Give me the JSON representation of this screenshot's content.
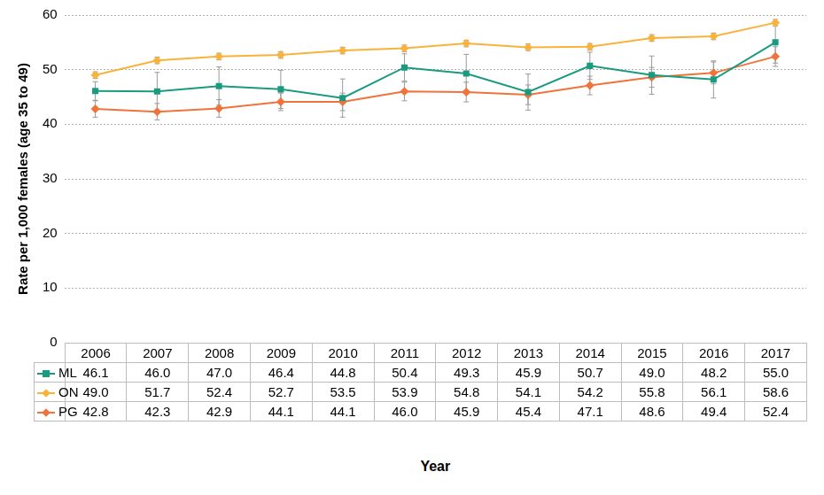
{
  "chart_data": {
    "type": "line",
    "y_label": "Rate per 1,000 females (age 35 to 49)",
    "x_label": "Year",
    "categories": [
      "2006",
      "2007",
      "2008",
      "2009",
      "2010",
      "2011",
      "2012",
      "2013",
      "2014",
      "2015",
      "2016",
      "2017"
    ],
    "series": [
      {
        "name": "ML",
        "color": "#1a9a7f",
        "marker": "square",
        "values": [
          46.1,
          46.0,
          47.0,
          46.4,
          44.8,
          50.4,
          49.3,
          45.9,
          50.7,
          49.0,
          48.2,
          55.0
        ],
        "value_labels": [
          "46.1",
          "46.0",
          "47.0",
          "46.4",
          "44.8",
          "50.4",
          "49.3",
          "45.9",
          "50.7",
          "49.0",
          "48.2",
          "55.0"
        ],
        "error": [
          1.7,
          3.5,
          3.5,
          3.5,
          3.5,
          2.5,
          3.5,
          3.3,
          2.5,
          3.5,
          3.4,
          3.8
        ]
      },
      {
        "name": "ON",
        "color": "#f9b33a",
        "marker": "diamond",
        "values": [
          49.0,
          51.7,
          52.4,
          52.7,
          53.5,
          53.9,
          54.8,
          54.1,
          54.2,
          55.8,
          56.1,
          58.6
        ],
        "value_labels": [
          "49.0",
          "51.7",
          "52.4",
          "52.7",
          "53.5",
          "53.9",
          "54.8",
          "54.1",
          "54.2",
          "55.8",
          "56.1",
          "58.6"
        ],
        "error": [
          0.6,
          0.6,
          0.6,
          0.6,
          0.6,
          0.6,
          0.6,
          0.6,
          0.6,
          0.6,
          0.6,
          0.6
        ]
      },
      {
        "name": "PG",
        "color": "#f0743a",
        "marker": "diamond",
        "values": [
          42.8,
          42.3,
          42.9,
          44.1,
          44.1,
          46.0,
          45.9,
          45.4,
          47.1,
          48.6,
          49.4,
          52.4
        ],
        "value_labels": [
          "42.8",
          "42.3",
          "42.9",
          "44.1",
          "44.1",
          "46.0",
          "45.9",
          "45.4",
          "47.1",
          "48.6",
          "49.4",
          "52.4"
        ],
        "error": [
          1.5,
          1.5,
          1.6,
          1.6,
          1.6,
          1.7,
          1.8,
          1.8,
          1.7,
          1.8,
          2.0,
          1.8
        ]
      }
    ],
    "ylim": [
      0,
      60
    ],
    "yticks": [
      0,
      10,
      20,
      30,
      40,
      50,
      60
    ],
    "grid": true
  }
}
